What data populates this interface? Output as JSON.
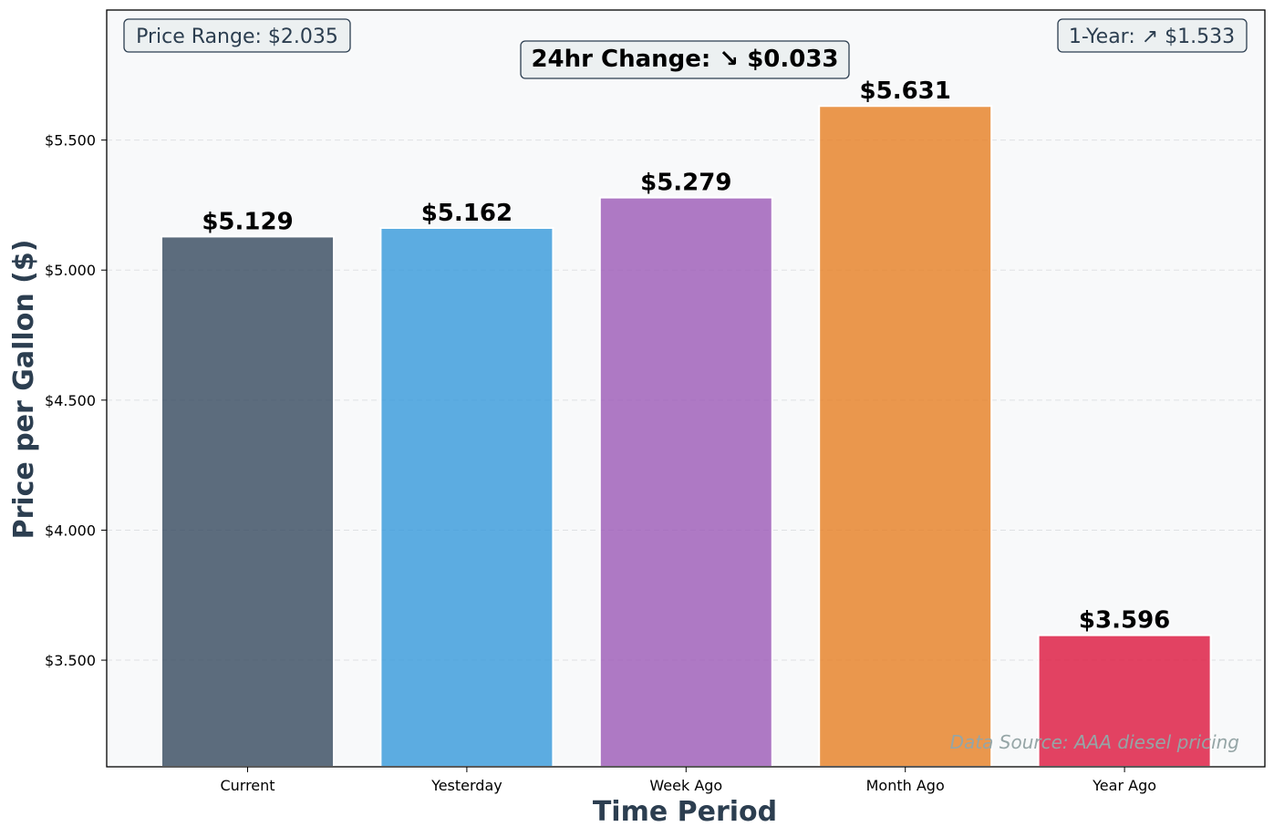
{
  "chart_data": {
    "type": "bar",
    "categories": [
      "Current",
      "Yesterday",
      "Week Ago",
      "Month Ago",
      "Year Ago"
    ],
    "values": [
      5.129,
      5.162,
      5.279,
      5.631,
      3.596
    ],
    "value_labels": [
      "$5.129",
      "$5.162",
      "$5.279",
      "$5.631",
      "$3.596"
    ],
    "colors": [
      "#34495e",
      "#3498db",
      "#9b59b6",
      "#e67e22",
      "#dc143c"
    ],
    "xlabel": "Time Period",
    "ylabel": "Price per Gallon ($)",
    "ylim": [
      3.09,
      6.0
    ],
    "yticks": [
      3.5,
      4.0,
      4.5,
      5.0,
      5.5
    ],
    "ytick_labels": [
      "$3.500",
      "$4.000",
      "$4.500",
      "$5.000",
      "$5.500"
    ],
    "grid": "horizontal dashed",
    "annotations": {
      "price_range": "Price Range: $2.035",
      "one_year": "1-Year: ↗ $1.533",
      "change_24hr": "24hr Change: ↘ $0.033",
      "source": "Data Source: AAA diesel pricing"
    }
  }
}
